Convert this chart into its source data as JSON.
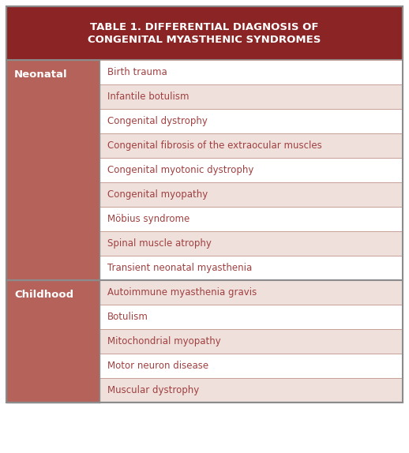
{
  "title_line1": "TABLE 1. DIFFERENTIAL DIAGNOSIS OF",
  "title_line2": "CONGENITAL MYASTHENIC SYNDROMES",
  "title_bg": "#8B2525",
  "title_text_color": "#FFFFFF",
  "left_col_bg": "#B5635A",
  "row_alt_colors": [
    "#FFFFFF",
    "#EFE0DC"
  ],
  "border_color": "#8B8B8B",
  "inner_border_color": "#C8A099",
  "text_color_left": "#FFFFFF",
  "text_color_right": "#A04040",
  "sections": [
    {
      "label": "Neonatal",
      "rows": [
        "Birth trauma",
        "Infantile botulism",
        "Congenital dystrophy",
        "Congenital fibrosis of the extraocular muscles",
        "Congenital myotonic dystrophy",
        "Congenital myopathy",
        "Möbius syndrome",
        "Spinal muscle atrophy",
        "Transient neonatal myasthenia"
      ]
    },
    {
      "label": "Childhood",
      "rows": [
        "Autoimmune myasthenia gravis",
        "Botulism",
        "Mitochondrial myopathy",
        "Motor neuron disease",
        "Muscular dystrophy"
      ]
    }
  ]
}
